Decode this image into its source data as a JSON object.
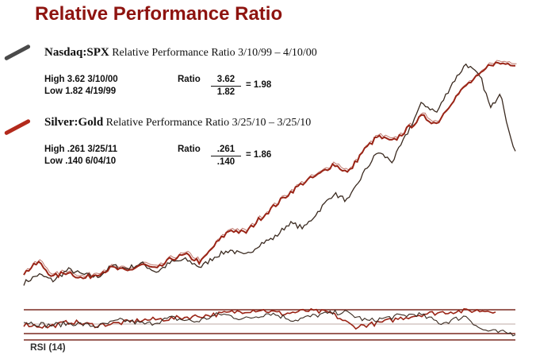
{
  "title": "Relative Performance Ratio",
  "colors": {
    "accent": "#8e1410",
    "nasdaq": "#3a2a20",
    "silver": "#9a2416",
    "silver_fill": "#b89a90",
    "gray_fill": "#bdb6ae"
  },
  "legend": {
    "nasdaq": {
      "name": "Nasdaq:SPX",
      "text": "Relative Performance Ratio 3/10/99 – 4/10/00",
      "high": "High 3.62 3/10/00",
      "low": "Low 1.82  4/19/99",
      "ratio_label": "Ratio",
      "numerator": "3.62",
      "denominator": "1.82",
      "result": "= 1.98"
    },
    "silver": {
      "name": "Silver:Gold",
      "text": "Relative Performance Ratio    3/25/10 – 3/25/10",
      "high": "High .261 3/25/11",
      "low": "Low  .140 6/04/10",
      "ratio_label": "Ratio",
      "numerator": ".261",
      "denominator": ".140",
      "result": "= 1.86"
    }
  },
  "rsi_label": "RSI (14)",
  "chart_data": [
    {
      "type": "line",
      "series": [
        {
          "name": "Nasdaq:SPX",
          "x": [
            0,
            0.03,
            0.06,
            0.09,
            0.12,
            0.15,
            0.18,
            0.21,
            0.24,
            0.27,
            0.3,
            0.33,
            0.36,
            0.39,
            0.42,
            0.45,
            0.48,
            0.51,
            0.54,
            0.57,
            0.6,
            0.63,
            0.66,
            0.69,
            0.72,
            0.75,
            0.78,
            0.81,
            0.84,
            0.87,
            0.9,
            0.93,
            0.95,
            0.97,
            0.99,
            1.0
          ],
          "values": [
            1.83,
            1.9,
            1.85,
            1.94,
            1.9,
            1.88,
            1.97,
            1.95,
            1.99,
            1.92,
            2.0,
            2.02,
            1.96,
            2.05,
            2.1,
            2.05,
            2.15,
            2.2,
            2.32,
            2.28,
            2.42,
            2.56,
            2.5,
            2.72,
            2.9,
            2.82,
            3.05,
            3.3,
            3.22,
            3.45,
            3.62,
            3.5,
            3.25,
            3.4,
            3.0,
            2.92
          ]
        },
        {
          "name": "Silver:Gold",
          "x": [
            0,
            0.03,
            0.06,
            0.09,
            0.12,
            0.15,
            0.18,
            0.21,
            0.24,
            0.27,
            0.3,
            0.33,
            0.36,
            0.39,
            0.42,
            0.45,
            0.48,
            0.51,
            0.54,
            0.57,
            0.6,
            0.63,
            0.66,
            0.69,
            0.72,
            0.75,
            0.78,
            0.81,
            0.84,
            0.87,
            0.9,
            0.93,
            0.95
          ],
          "values": [
            0.146,
            0.152,
            0.144,
            0.147,
            0.143,
            0.146,
            0.149,
            0.147,
            0.151,
            0.148,
            0.154,
            0.156,
            0.152,
            0.162,
            0.17,
            0.168,
            0.176,
            0.183,
            0.19,
            0.196,
            0.2,
            0.206,
            0.201,
            0.213,
            0.221,
            0.218,
            0.225,
            0.232,
            0.228,
            0.24,
            0.249,
            0.255,
            0.261
          ]
        }
      ]
    },
    {
      "type": "line",
      "title": "RSI (14)",
      "series": [
        {
          "name": "Nasdaq:SPX",
          "x": [
            0,
            0.05,
            0.1,
            0.15,
            0.2,
            0.25,
            0.3,
            0.35,
            0.4,
            0.45,
            0.5,
            0.55,
            0.6,
            0.65,
            0.7,
            0.75,
            0.8,
            0.85,
            0.9,
            0.93,
            0.96,
            1.0
          ],
          "values": [
            55,
            48,
            52,
            46,
            58,
            50,
            62,
            55,
            70,
            60,
            72,
            58,
            68,
            74,
            56,
            64,
            70,
            52,
            66,
            40,
            35,
            32
          ]
        },
        {
          "name": "Silver:Gold",
          "x": [
            0,
            0.05,
            0.1,
            0.15,
            0.2,
            0.25,
            0.3,
            0.35,
            0.4,
            0.45,
            0.5,
            0.55,
            0.6,
            0.65,
            0.7,
            0.75,
            0.8,
            0.85,
            0.9,
            0.95
          ],
          "values": [
            50,
            45,
            55,
            48,
            52,
            58,
            60,
            64,
            68,
            74,
            78,
            70,
            76,
            72,
            45,
            52,
            62,
            70,
            74,
            76
          ]
        }
      ]
    }
  ]
}
